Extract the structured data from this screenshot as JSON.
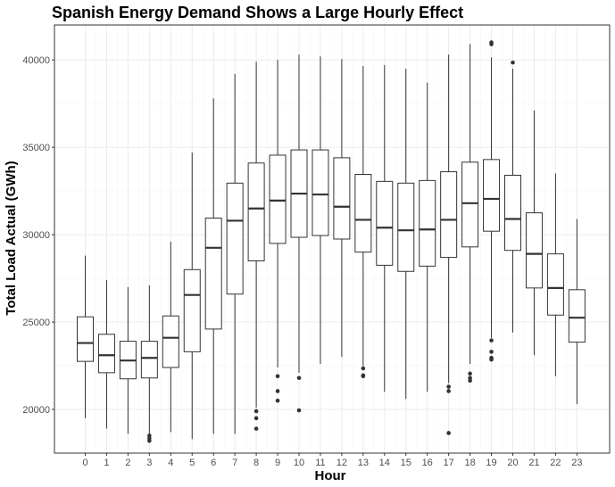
{
  "chart_data": {
    "type": "boxplot",
    "title": "Spanish Energy Demand Shows a Large Hourly Effect",
    "xlabel": "Hour",
    "ylabel": "Total Load Actual (GWh)",
    "ylim": [
      17500,
      42000
    ],
    "y_ticks": [
      20000,
      25000,
      30000,
      35000,
      40000
    ],
    "y_tick_labels": [
      "20000",
      "25000",
      "30000",
      "35000",
      "40000"
    ],
    "categories": [
      "0",
      "1",
      "2",
      "3",
      "4",
      "5",
      "6",
      "7",
      "8",
      "9",
      "10",
      "11",
      "12",
      "13",
      "14",
      "15",
      "16",
      "17",
      "18",
      "19",
      "20",
      "21",
      "22",
      "23"
    ],
    "grid": true,
    "theme": "light",
    "colors": {
      "box_stroke": "#333333",
      "grid_major": "#ebebeb",
      "grid_minor": "#f5f5f5",
      "panel_border": "#333333"
    },
    "boxes": [
      {
        "hour": "0",
        "whisker_low": 19500,
        "q1": 22750,
        "median": 23800,
        "q3": 25300,
        "whisker_high": 28800,
        "outliers": []
      },
      {
        "hour": "1",
        "whisker_low": 18900,
        "q1": 22100,
        "median": 23100,
        "q3": 24300,
        "whisker_high": 27400,
        "outliers": []
      },
      {
        "hour": "2",
        "whisker_low": 18600,
        "q1": 21750,
        "median": 22800,
        "q3": 23900,
        "whisker_high": 27000,
        "outliers": []
      },
      {
        "hour": "3",
        "whisker_low": 18600,
        "q1": 21800,
        "median": 22950,
        "q3": 23900,
        "whisker_high": 27100,
        "outliers": [
          18500,
          18350,
          18200
        ]
      },
      {
        "hour": "4",
        "whisker_low": 18700,
        "q1": 22400,
        "median": 24100,
        "q3": 25350,
        "whisker_high": 29600,
        "outliers": []
      },
      {
        "hour": "5",
        "whisker_low": 18300,
        "q1": 23300,
        "median": 26550,
        "q3": 28000,
        "whisker_high": 34700,
        "outliers": []
      },
      {
        "hour": "6",
        "whisker_low": 18600,
        "q1": 24600,
        "median": 29250,
        "q3": 30950,
        "whisker_high": 37800,
        "outliers": []
      },
      {
        "hour": "7",
        "whisker_low": 18600,
        "q1": 26600,
        "median": 30800,
        "q3": 32950,
        "whisker_high": 39200,
        "outliers": []
      },
      {
        "hour": "8",
        "whisker_low": 20100,
        "q1": 28500,
        "median": 31500,
        "q3": 34100,
        "whisker_high": 39900,
        "outliers": [
          19900,
          19500,
          18900
        ]
      },
      {
        "hour": "9",
        "whisker_low": 22400,
        "q1": 29500,
        "median": 31950,
        "q3": 34550,
        "whisker_high": 40000,
        "outliers": [
          21900,
          21050,
          20500
        ]
      },
      {
        "hour": "10",
        "whisker_low": 22100,
        "q1": 29850,
        "median": 32350,
        "q3": 34850,
        "whisker_high": 40300,
        "outliers": [
          21800,
          19950
        ]
      },
      {
        "hour": "11",
        "whisker_low": 22600,
        "q1": 29950,
        "median": 32300,
        "q3": 34850,
        "whisker_high": 40200,
        "outliers": []
      },
      {
        "hour": "12",
        "whisker_low": 23000,
        "q1": 29750,
        "median": 31600,
        "q3": 34400,
        "whisker_high": 40050,
        "outliers": []
      },
      {
        "hour": "13",
        "whisker_low": 22500,
        "q1": 29000,
        "median": 30850,
        "q3": 33450,
        "whisker_high": 39650,
        "outliers": [
          22350,
          21950,
          21900
        ]
      },
      {
        "hour": "14",
        "whisker_low": 21000,
        "q1": 28250,
        "median": 30400,
        "q3": 33050,
        "whisker_high": 39700,
        "outliers": []
      },
      {
        "hour": "15",
        "whisker_low": 20600,
        "q1": 27900,
        "median": 30250,
        "q3": 32950,
        "whisker_high": 39500,
        "outliers": []
      },
      {
        "hour": "16",
        "whisker_low": 21000,
        "q1": 28200,
        "median": 30300,
        "q3": 33100,
        "whisker_high": 38700,
        "outliers": []
      },
      {
        "hour": "17",
        "whisker_low": 21500,
        "q1": 28700,
        "median": 30850,
        "q3": 33600,
        "whisker_high": 40300,
        "outliers": [
          21300,
          21050,
          18650
        ]
      },
      {
        "hour": "18",
        "whisker_low": 22600,
        "q1": 29300,
        "median": 31800,
        "q3": 34150,
        "whisker_high": 40900,
        "outliers": [
          22050,
          21800,
          21650
        ]
      },
      {
        "hour": "19",
        "whisker_low": 24100,
        "q1": 30200,
        "median": 32050,
        "q3": 34300,
        "whisker_high": 40150,
        "outliers": [
          41000,
          40900,
          23950,
          23300,
          22950,
          22850
        ]
      },
      {
        "hour": "20",
        "whisker_low": 24400,
        "q1": 29100,
        "median": 30900,
        "q3": 33400,
        "whisker_high": 39500,
        "outliers": [
          39850
        ]
      },
      {
        "hour": "21",
        "whisker_low": 23100,
        "q1": 26950,
        "median": 28900,
        "q3": 31250,
        "whisker_high": 37100,
        "outliers": []
      },
      {
        "hour": "22",
        "whisker_low": 21900,
        "q1": 25400,
        "median": 26950,
        "q3": 28900,
        "whisker_high": 33500,
        "outliers": []
      },
      {
        "hour": "23",
        "whisker_low": 20300,
        "q1": 23850,
        "median": 25250,
        "q3": 26850,
        "whisker_high": 30900,
        "outliers": []
      }
    ]
  }
}
